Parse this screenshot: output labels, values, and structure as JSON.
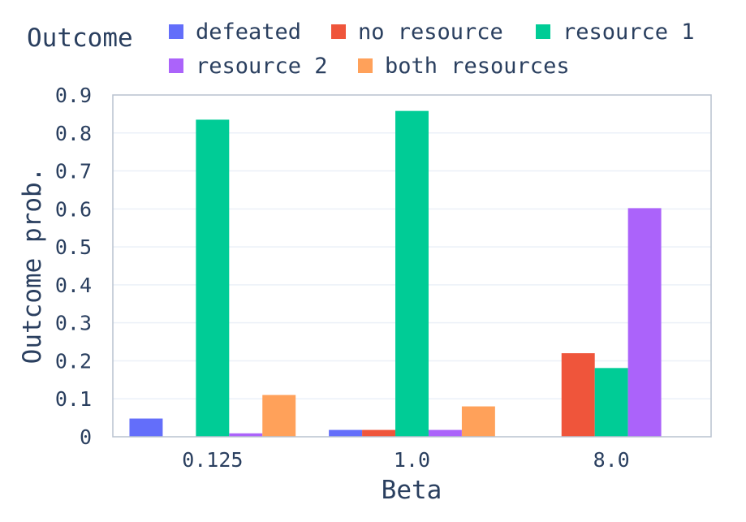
{
  "chart_data": {
    "type": "bar",
    "xlabel": "Beta",
    "ylabel": "Outcome prob.",
    "legend_title": "Outcome",
    "legend_position": "top",
    "categories": [
      "0.125",
      "1.0",
      "8.0"
    ],
    "ylim": [
      0,
      0.9
    ],
    "yticks": [
      0,
      0.1,
      0.2,
      0.3,
      0.4,
      0.5,
      0.6,
      0.7,
      0.8,
      0.9
    ],
    "ytick_labels": [
      "0",
      "0.1",
      "0.2",
      "0.3",
      "0.4",
      "0.5",
      "0.6",
      "0.7",
      "0.8",
      "0.9"
    ],
    "grid": true,
    "series": [
      {
        "name": "defeated",
        "color": "#636efa",
        "values": [
          0.048,
          0.018,
          0
        ]
      },
      {
        "name": "no resource",
        "color": "#ef553b",
        "values": [
          0,
          0.018,
          0.22
        ]
      },
      {
        "name": "resource 1",
        "color": "#00cc96",
        "values": [
          0.835,
          0.858,
          0.181
        ]
      },
      {
        "name": "resource 2",
        "color": "#ab63fa",
        "values": [
          0.009,
          0.018,
          0.602
        ]
      },
      {
        "name": "both resources",
        "color": "#ffa15a",
        "values": [
          0.11,
          0.08,
          0
        ]
      }
    ]
  }
}
